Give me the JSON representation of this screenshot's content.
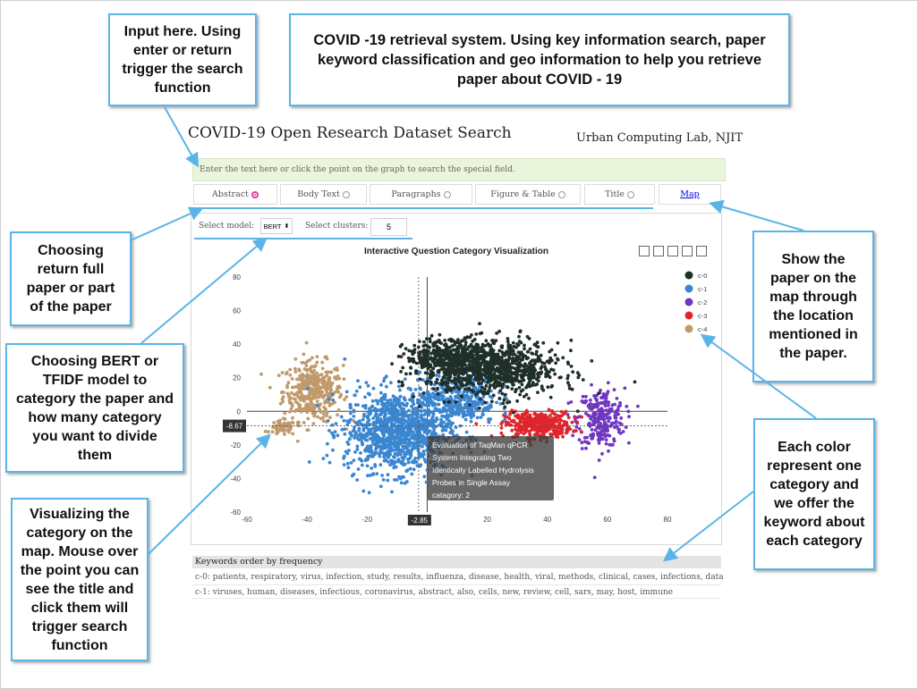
{
  "callouts": {
    "input": "Input here. Using enter or return trigger the search function",
    "header": "COVID -19 retrieval system. Using key information search,  paper keyword classification and geo information to help you retrieve paper about COVID - 19",
    "return": "Choosing return full paper or part of the paper",
    "model": "Choosing BERT or TFIDF model to category the paper and how many category you want to divide them",
    "visualize": "Visualizing the category on the map. Mouse over the point you can see the title and click them will trigger search function",
    "map": "Show the paper on the map through the location mentioned in the paper.",
    "color": "Each color represent one category and we offer the keyword about each category"
  },
  "app": {
    "title": "COVID-19 Open Research Dataset Search",
    "org": "Urban Computing Lab, NJIT",
    "search_placeholder": "Enter the text here or click the point on the graph to search the special field.",
    "tabs": [
      {
        "label": "Abstract",
        "selected": true
      },
      {
        "label": "Body Text",
        "selected": false
      },
      {
        "label": "Paragraphs",
        "selected": false
      },
      {
        "label": "Figure & Table",
        "selected": false
      },
      {
        "label": "Title",
        "selected": false
      },
      {
        "label": "Map",
        "selected": false
      }
    ],
    "select_model_label": "Select model:",
    "model_value": "BERT",
    "select_clusters_label": "Select clusters:",
    "clusters_value": "5"
  },
  "chart_data": {
    "type": "scatter",
    "title": "Interactive Question Category Visualization",
    "xlim": [
      -60,
      80
    ],
    "ylim": [
      -60,
      80
    ],
    "x_ticks": [
      -60,
      -40,
      -20,
      0,
      20,
      40,
      60,
      80
    ],
    "y_ticks": [
      80,
      60,
      40,
      20,
      0,
      -20,
      -40,
      -60
    ],
    "legend": {
      "position": "top-right",
      "entries": [
        "c-0",
        "c-1",
        "c-2",
        "c-3",
        "c-4"
      ]
    },
    "series": [
      {
        "name": "c-0",
        "color": "#1f2f2a",
        "clusters": [
          {
            "cx": 22,
            "cy": 25,
            "rx": 20,
            "ry": 15,
            "n": 900
          },
          {
            "cx": 8,
            "cy": 32,
            "rx": 14,
            "ry": 10,
            "n": 400
          }
        ]
      },
      {
        "name": "c-1",
        "color": "#3a86d0",
        "clusters": [
          {
            "cx": -10,
            "cy": -12,
            "rx": 16,
            "ry": 22,
            "n": 1100
          },
          {
            "cx": 10,
            "cy": 8,
            "rx": 12,
            "ry": 14,
            "n": 400
          }
        ]
      },
      {
        "name": "c-2",
        "color": "#7036c2",
        "clusters": [
          {
            "cx": 58,
            "cy": -4,
            "rx": 7,
            "ry": 16,
            "n": 260
          }
        ]
      },
      {
        "name": "c-3",
        "color": "#e0262c",
        "clusters": [
          {
            "cx": 37,
            "cy": -8,
            "rx": 10,
            "ry": 7,
            "n": 380
          }
        ]
      },
      {
        "name": "c-4",
        "color": "#c09a6b",
        "clusters": [
          {
            "cx": -38,
            "cy": 12,
            "rx": 9,
            "ry": 16,
            "n": 400
          },
          {
            "cx": -48,
            "cy": -10,
            "rx": 4,
            "ry": 4,
            "n": 60
          }
        ]
      }
    ],
    "tooltip": {
      "x": -2.85,
      "y": -8.67,
      "lines": [
        "Evaluation of TaqMan qPCR",
        "System Integrating Two",
        "Identically Labelled Hydrolysis",
        "Probes in Single Assay",
        "catagory: 2"
      ]
    },
    "crosshair_x_label": "-2.85",
    "crosshair_y_label": "-8.67"
  },
  "keywords": {
    "header": "Keywords order by frequency",
    "rows": [
      "c-0: patients, respiratory, virus, infection, study, results, influenza, disease, health, viral, methods, clinical, cases, infections, data",
      "c-1: viruses, human, diseases, infectious, coronavirus, abstract, also, cells, new, review, cell, sars, may, host, immune"
    ]
  }
}
